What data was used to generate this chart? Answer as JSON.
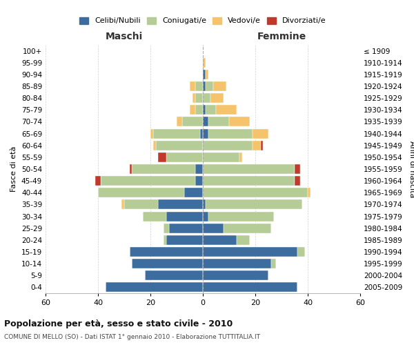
{
  "age_groups": [
    "0-4",
    "5-9",
    "10-14",
    "15-19",
    "20-24",
    "25-29",
    "30-34",
    "35-39",
    "40-44",
    "45-49",
    "50-54",
    "55-59",
    "60-64",
    "65-69",
    "70-74",
    "75-79",
    "80-84",
    "85-89",
    "90-94",
    "95-99",
    "100+"
  ],
  "birth_years": [
    "2005-2009",
    "2000-2004",
    "1995-1999",
    "1990-1994",
    "1985-1989",
    "1980-1984",
    "1975-1979",
    "1970-1974",
    "1965-1969",
    "1960-1964",
    "1955-1959",
    "1950-1954",
    "1945-1949",
    "1940-1944",
    "1935-1939",
    "1930-1934",
    "1925-1929",
    "1920-1924",
    "1915-1919",
    "1910-1914",
    "≤ 1909"
  ],
  "colors": {
    "celibi": "#3d6d9e",
    "coniugati": "#b5cc96",
    "vedovi": "#f5c36b",
    "divorziati": "#c0392b"
  },
  "maschi": {
    "celibi": [
      37,
      22,
      27,
      28,
      14,
      13,
      14,
      17,
      7,
      3,
      3,
      0,
      0,
      1,
      0,
      0,
      0,
      0,
      0,
      0,
      0
    ],
    "coniugati": [
      0,
      0,
      0,
      0,
      1,
      2,
      9,
      13,
      33,
      36,
      24,
      14,
      18,
      18,
      8,
      3,
      3,
      3,
      0,
      0,
      0
    ],
    "vedovi": [
      0,
      0,
      0,
      0,
      0,
      0,
      0,
      1,
      0,
      0,
      0,
      0,
      1,
      1,
      2,
      2,
      1,
      2,
      0,
      0,
      0
    ],
    "divorziati": [
      0,
      0,
      0,
      0,
      0,
      0,
      0,
      0,
      0,
      2,
      1,
      3,
      0,
      0,
      0,
      0,
      0,
      0,
      0,
      0,
      0
    ]
  },
  "femmine": {
    "nubili": [
      36,
      25,
      26,
      36,
      13,
      8,
      2,
      1,
      0,
      0,
      0,
      0,
      0,
      2,
      2,
      1,
      0,
      1,
      1,
      0,
      0
    ],
    "coniugate": [
      0,
      0,
      2,
      3,
      5,
      18,
      25,
      37,
      40,
      35,
      35,
      14,
      19,
      17,
      8,
      4,
      3,
      3,
      0,
      0,
      0
    ],
    "vedove": [
      0,
      0,
      0,
      0,
      0,
      0,
      0,
      0,
      1,
      0,
      0,
      1,
      3,
      6,
      8,
      8,
      5,
      5,
      1,
      1,
      0
    ],
    "divorziate": [
      0,
      0,
      0,
      0,
      0,
      0,
      0,
      0,
      0,
      2,
      2,
      0,
      1,
      0,
      0,
      0,
      0,
      0,
      0,
      0,
      0
    ]
  },
  "xlim": 60,
  "title_main": "Popolazione per età, sesso e stato civile - 2010",
  "title_sub": "COMUNE DI MELLO (SO) - Dati ISTAT 1° gennaio 2010 - Elaborazione TUTTITALIA.IT",
  "xlabel_left": "Maschi",
  "xlabel_right": "Femmine",
  "ylabel_left": "Fasce di età",
  "ylabel_right": "Anni di nascita",
  "legend_labels": [
    "Celibi/Nubili",
    "Coniugati/e",
    "Vedovi/e",
    "Divorziati/e"
  ],
  "background_color": "#ffffff",
  "grid_color": "#cccccc"
}
